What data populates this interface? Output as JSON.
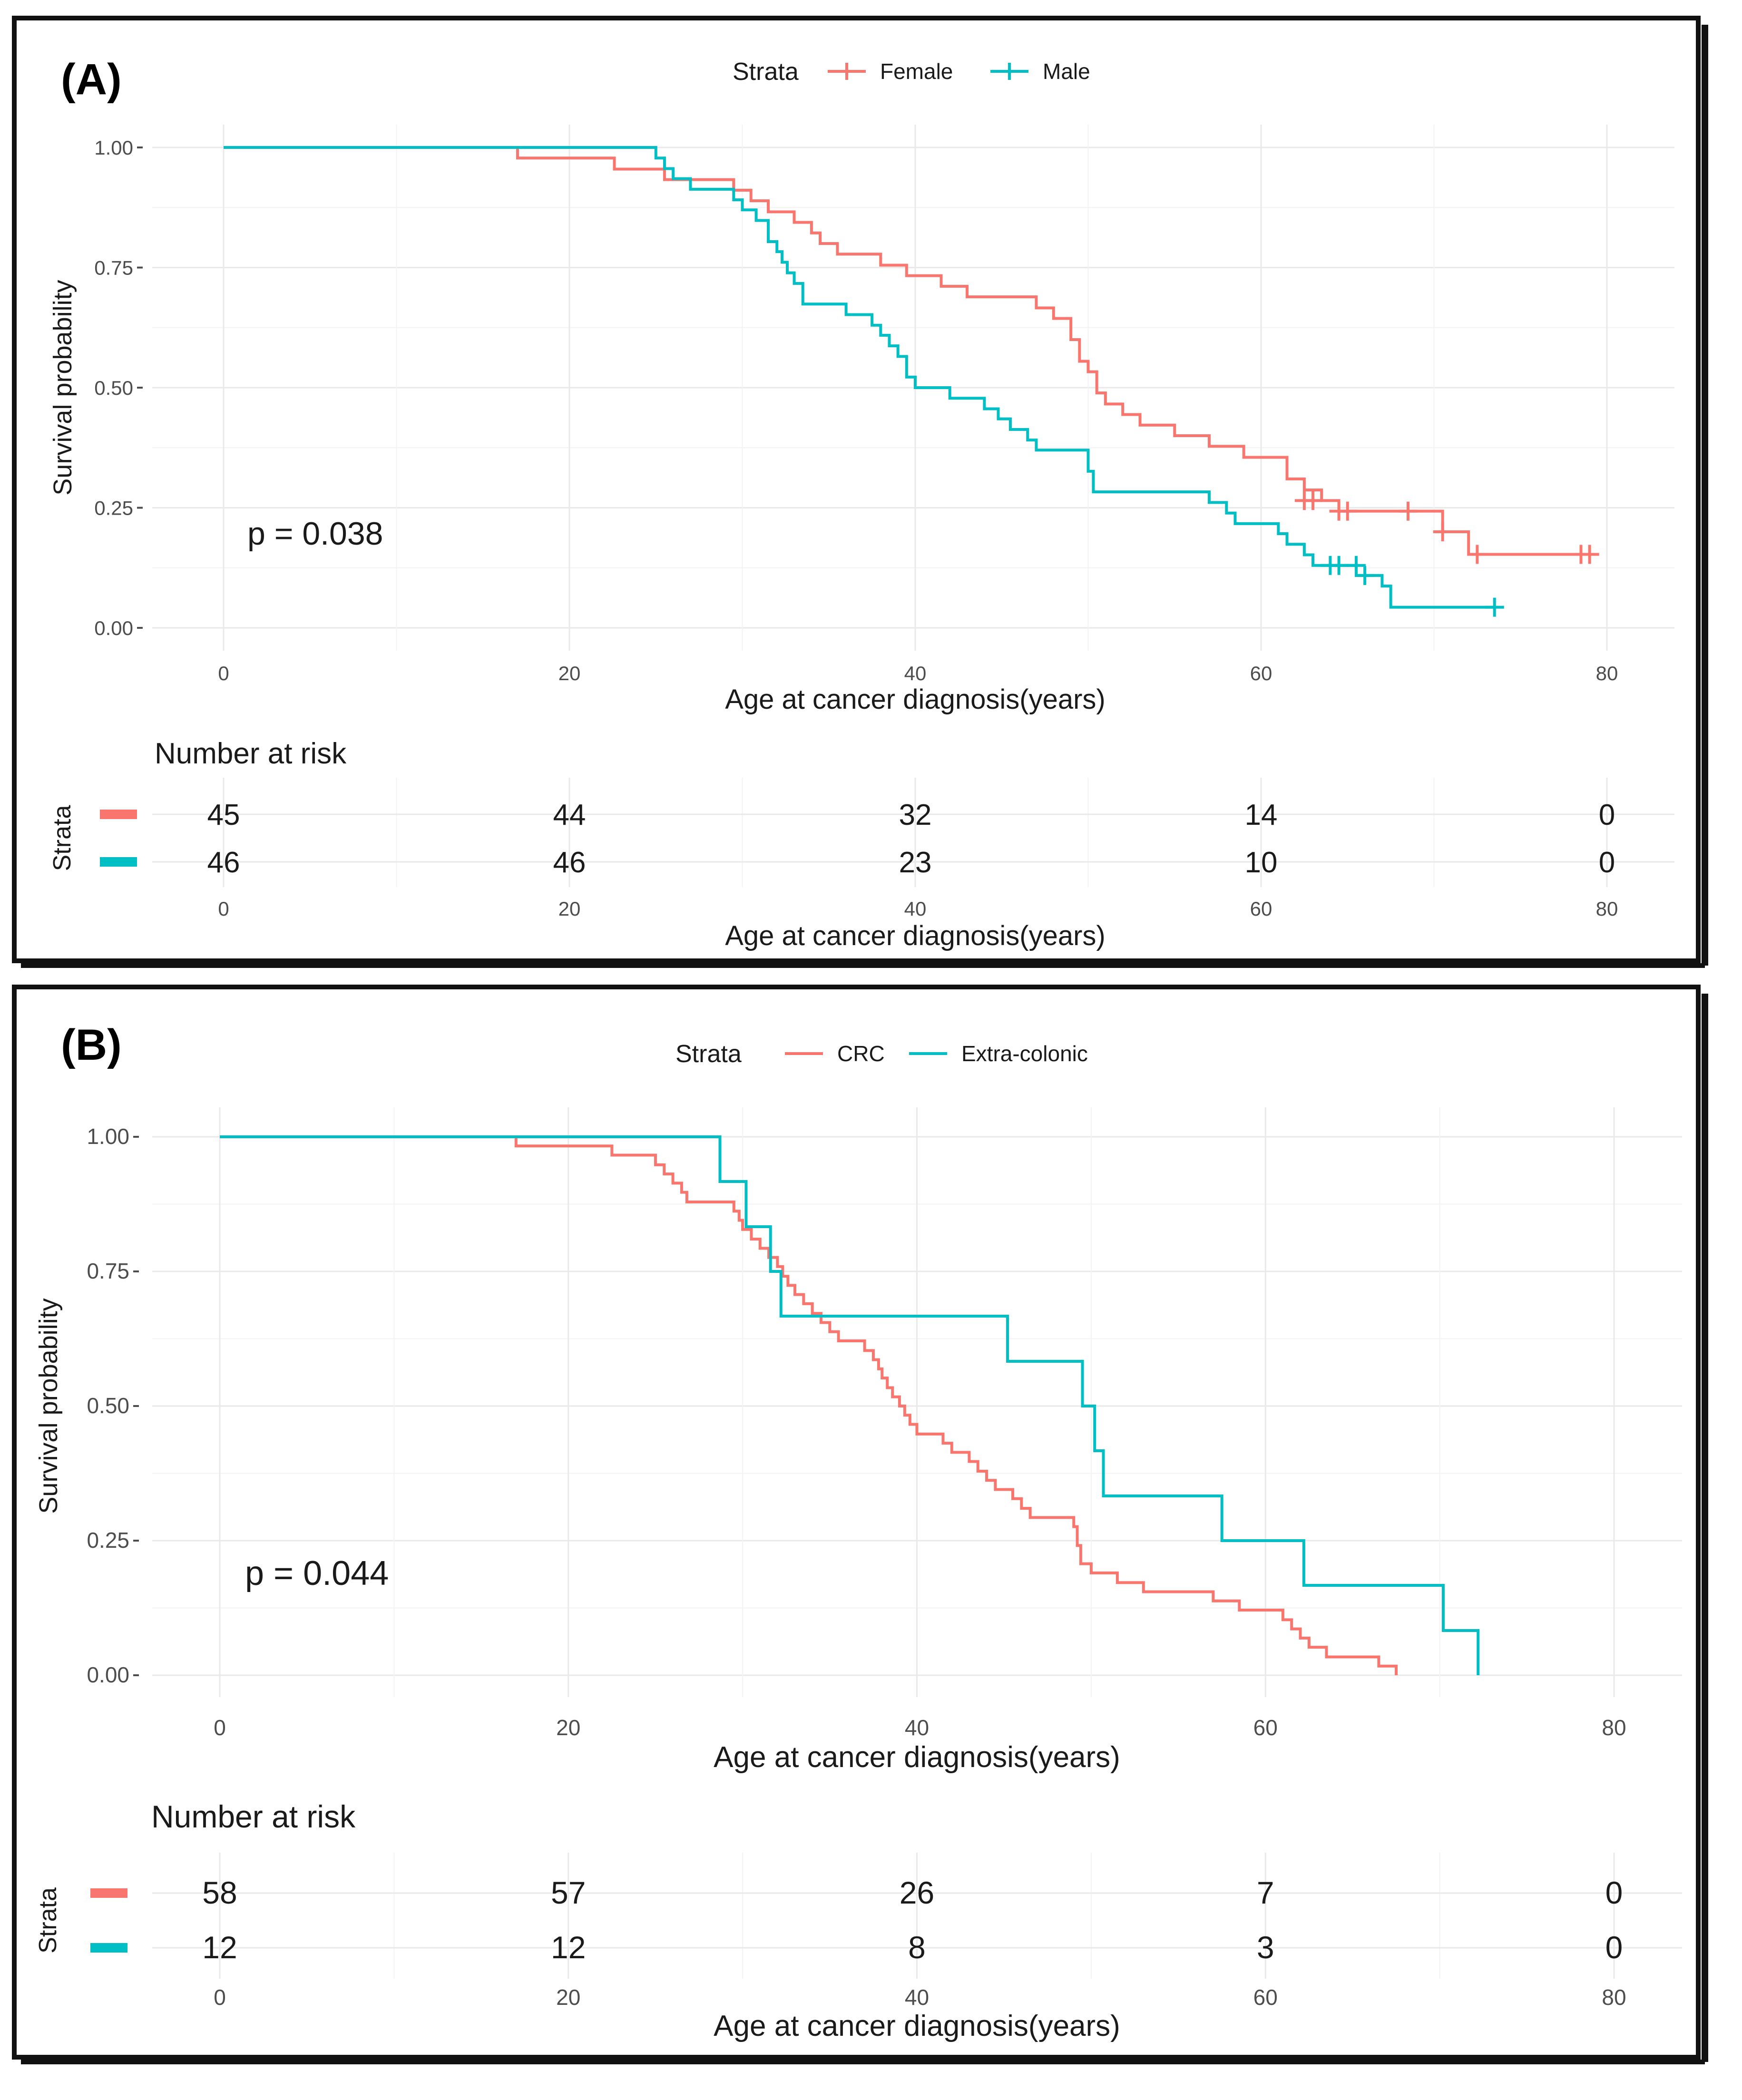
{
  "chart_data": [
    {
      "type": "line",
      "panel_label": "(A)",
      "legend_title": "Strata",
      "legend_position": "top",
      "xlabel": "Age at cancer diagnosis(years)",
      "ylabel": "Survival probability",
      "xlim": [
        0,
        80
      ],
      "ylim": [
        0,
        1
      ],
      "x_ticks": [
        "0",
        "20",
        "40",
        "60",
        "80"
      ],
      "y_ticks": [
        "0.00",
        "0.25",
        "0.50",
        "0.75",
        "1.00"
      ],
      "p_value": "p = 0.038",
      "series": [
        {
          "name": "Female",
          "color": "#F8766D",
          "marker": "+",
          "steps": [
            [
              0,
              1.0
            ],
            [
              17,
              0.978
            ],
            [
              22.5,
              0.978
            ],
            [
              22.6,
              0.955
            ],
            [
              25.5,
              0.933
            ],
            [
              29.5,
              0.911
            ],
            [
              30.5,
              0.889
            ],
            [
              31.5,
              0.866
            ],
            [
              33,
              0.844
            ],
            [
              34,
              0.822
            ],
            [
              34.5,
              0.8
            ],
            [
              35.5,
              0.778
            ],
            [
              38,
              0.755
            ],
            [
              39.5,
              0.733
            ],
            [
              41.5,
              0.711
            ],
            [
              43,
              0.689
            ],
            [
              47,
              0.666
            ],
            [
              48,
              0.644
            ],
            [
              49,
              0.6
            ],
            [
              49.5,
              0.555
            ],
            [
              50,
              0.533
            ],
            [
              50.5,
              0.489
            ],
            [
              51,
              0.466
            ],
            [
              52,
              0.444
            ],
            [
              53,
              0.422
            ],
            [
              55,
              0.4
            ],
            [
              57,
              0.378
            ],
            [
              59,
              0.355
            ],
            [
              61.5,
              0.31
            ],
            [
              62.5,
              0.287
            ],
            [
              63.5,
              0.265
            ],
            [
              64.5,
              0.243
            ],
            [
              70.5,
              0.2
            ],
            [
              72,
              0.153
            ],
            [
              79,
              0.153
            ]
          ],
          "censored": [
            [
              62.5,
              0.265
            ],
            [
              63,
              0.265
            ],
            [
              64.5,
              0.243
            ],
            [
              65,
              0.243
            ],
            [
              68.5,
              0.243
            ],
            [
              70.5,
              0.2
            ],
            [
              72.5,
              0.153
            ],
            [
              78.5,
              0.153
            ],
            [
              79,
              0.153
            ]
          ]
        },
        {
          "name": "Male",
          "color": "#00BFC4",
          "marker": "+",
          "steps": [
            [
              0,
              1.0
            ],
            [
              24.8,
              1.0
            ],
            [
              25,
              0.978
            ],
            [
              25.5,
              0.956
            ],
            [
              26,
              0.935
            ],
            [
              27,
              0.913
            ],
            [
              29.5,
              0.891
            ],
            [
              30,
              0.87
            ],
            [
              30.8,
              0.848
            ],
            [
              31.5,
              0.804
            ],
            [
              32,
              0.783
            ],
            [
              32.3,
              0.761
            ],
            [
              32.6,
              0.739
            ],
            [
              33,
              0.717
            ],
            [
              33.5,
              0.674
            ],
            [
              36,
              0.652
            ],
            [
              37.5,
              0.63
            ],
            [
              38,
              0.609
            ],
            [
              38.5,
              0.587
            ],
            [
              39,
              0.565
            ],
            [
              39.5,
              0.522
            ],
            [
              40,
              0.5
            ],
            [
              42,
              0.478
            ],
            [
              44,
              0.456
            ],
            [
              44.8,
              0.435
            ],
            [
              45.5,
              0.413
            ],
            [
              46.5,
              0.391
            ],
            [
              47,
              0.37
            ],
            [
              50,
              0.326
            ],
            [
              50.3,
              0.283
            ],
            [
              57,
              0.261
            ],
            [
              58,
              0.239
            ],
            [
              58.5,
              0.217
            ],
            [
              61,
              0.196
            ],
            [
              61.5,
              0.174
            ],
            [
              62.5,
              0.152
            ],
            [
              63,
              0.13
            ],
            [
              65.5,
              0.109
            ],
            [
              67,
              0.087
            ],
            [
              67.5,
              0.043
            ],
            [
              73.5,
              0.043
            ]
          ],
          "censored": [
            [
              64,
              0.13
            ],
            [
              64.5,
              0.13
            ],
            [
              65.5,
              0.13
            ],
            [
              66,
              0.109
            ],
            [
              73.5,
              0.043
            ]
          ]
        }
      ],
      "risk_table": {
        "title": "Number at risk",
        "strata_label": "Strata",
        "times": [
          "0",
          "20",
          "40",
          "60",
          "80"
        ],
        "rows": [
          {
            "name": "Female",
            "color": "#F8766D",
            "values": [
              "45",
              "44",
              "32",
              "14",
              "0"
            ]
          },
          {
            "name": "Male",
            "color": "#00BFC4",
            "values": [
              "46",
              "46",
              "23",
              "10",
              "0"
            ]
          }
        ],
        "xlabel": "Age at cancer diagnosis(years)"
      }
    },
    {
      "type": "line",
      "panel_label": "(B)",
      "legend_title": "Strata",
      "legend_position": "top",
      "xlabel": "Age at cancer diagnosis(years)",
      "ylabel": "Survival probability",
      "xlim": [
        0,
        80
      ],
      "ylim": [
        0,
        1
      ],
      "x_ticks": [
        "0",
        "20",
        "40",
        "60",
        "80"
      ],
      "y_ticks": [
        "0.00",
        "0.25",
        "0.50",
        "0.75",
        "1.00"
      ],
      "p_value": "p = 0.044",
      "series": [
        {
          "name": "CRC",
          "color": "#F8766D",
          "marker": "",
          "steps": [
            [
              0,
              1.0
            ],
            [
              17,
              0.983
            ],
            [
              22.5,
              0.966
            ],
            [
              25,
              0.948
            ],
            [
              25.5,
              0.931
            ],
            [
              26,
              0.914
            ],
            [
              26.5,
              0.897
            ],
            [
              26.8,
              0.879
            ],
            [
              29.5,
              0.862
            ],
            [
              29.8,
              0.845
            ],
            [
              30,
              0.828
            ],
            [
              30.5,
              0.81
            ],
            [
              31,
              0.793
            ],
            [
              31.5,
              0.776
            ],
            [
              32,
              0.759
            ],
            [
              32.3,
              0.741
            ],
            [
              32.6,
              0.724
            ],
            [
              33,
              0.707
            ],
            [
              33.5,
              0.69
            ],
            [
              34,
              0.672
            ],
            [
              34.5,
              0.655
            ],
            [
              35,
              0.638
            ],
            [
              35.5,
              0.621
            ],
            [
              37,
              0.603
            ],
            [
              37.5,
              0.586
            ],
            [
              37.8,
              0.569
            ],
            [
              38,
              0.552
            ],
            [
              38.3,
              0.534
            ],
            [
              38.6,
              0.517
            ],
            [
              39,
              0.5
            ],
            [
              39.3,
              0.483
            ],
            [
              39.6,
              0.466
            ],
            [
              40,
              0.448
            ],
            [
              41.5,
              0.431
            ],
            [
              42,
              0.414
            ],
            [
              43,
              0.397
            ],
            [
              43.5,
              0.379
            ],
            [
              44,
              0.362
            ],
            [
              44.5,
              0.345
            ],
            [
              45.5,
              0.328
            ],
            [
              46,
              0.31
            ],
            [
              46.5,
              0.293
            ],
            [
              49,
              0.276
            ],
            [
              49.2,
              0.241
            ],
            [
              49.4,
              0.207
            ],
            [
              50,
              0.19
            ],
            [
              51.5,
              0.172
            ],
            [
              53,
              0.155
            ],
            [
              57,
              0.138
            ],
            [
              58.5,
              0.121
            ],
            [
              61,
              0.103
            ],
            [
              61.5,
              0.086
            ],
            [
              62,
              0.069
            ],
            [
              62.5,
              0.052
            ],
            [
              63.5,
              0.034
            ],
            [
              66.5,
              0.017
            ],
            [
              67.5,
              0.0
            ]
          ],
          "censored": []
        },
        {
          "name": "Extra-colonic",
          "color": "#00BFC4",
          "marker": "",
          "steps": [
            [
              0,
              1.0
            ],
            [
              28.6,
              1.0
            ],
            [
              28.7,
              0.917
            ],
            [
              30.2,
              0.833
            ],
            [
              31.6,
              0.75
            ],
            [
              32.2,
              0.667
            ],
            [
              45.2,
              0.583
            ],
            [
              49.5,
              0.5
            ],
            [
              50.2,
              0.417
            ],
            [
              50.7,
              0.333
            ],
            [
              57.5,
              0.25
            ],
            [
              62.2,
              0.167
            ],
            [
              70.2,
              0.083
            ],
            [
              72.2,
              0.0
            ]
          ],
          "censored": []
        }
      ],
      "risk_table": {
        "title": "Number at risk",
        "strata_label": "Strata",
        "times": [
          "0",
          "20",
          "40",
          "60",
          "80"
        ],
        "rows": [
          {
            "name": "CRC",
            "color": "#F8766D",
            "values": [
              "58",
              "57",
              "26",
              "7",
              "0"
            ]
          },
          {
            "name": "Extra-colonic",
            "color": "#00BFC4",
            "values": [
              "12",
              "12",
              "8",
              "3",
              "0"
            ]
          }
        ],
        "xlabel": "Age at cancer diagnosis(years)"
      }
    }
  ]
}
